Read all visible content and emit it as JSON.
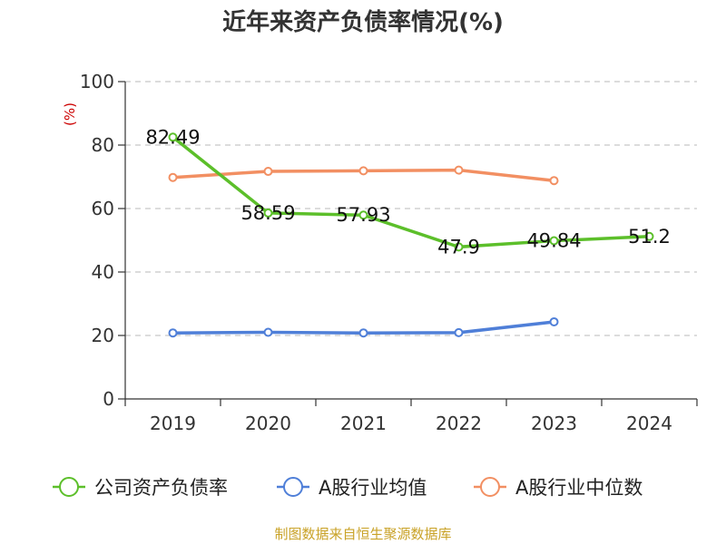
{
  "title": "近年来资产负债率情况(%)",
  "source": "制图数据来自恒生聚源数据库",
  "colors": {
    "company": "#5cbf2a",
    "industry_avg": "#4f7fd8",
    "industry_median": "#f28f62",
    "grid": "#c8c8c8",
    "axis": "#333333",
    "ylabel": "#cc0000"
  },
  "chart_data": {
    "type": "line",
    "title": "近年来资产负债率情况(%)",
    "xlabel": "",
    "ylabel": "(%)",
    "categories": [
      "2019",
      "2020",
      "2021",
      "2022",
      "2023",
      "2024"
    ],
    "ylim": [
      0,
      100
    ],
    "yticks": [
      0,
      20,
      40,
      60,
      80,
      100
    ],
    "grid": "horizontal dashed",
    "legend": "bottom",
    "series": [
      {
        "name": "公司资产负债率",
        "color": "#5cbf2a",
        "values": [
          82.49,
          58.59,
          57.93,
          47.9,
          49.84,
          51.2
        ],
        "labels": [
          "82.49",
          "58.59",
          "57.93",
          "47.9",
          "49.84",
          "51.2"
        ]
      },
      {
        "name": "A股行业均值",
        "color": "#4f7fd8",
        "values": [
          20.8,
          21.0,
          20.8,
          20.9,
          24.3,
          null
        ]
      },
      {
        "name": "A股行业中位数",
        "color": "#f28f62",
        "values": [
          69.8,
          71.7,
          71.9,
          72.1,
          68.8,
          null
        ]
      }
    ]
  }
}
